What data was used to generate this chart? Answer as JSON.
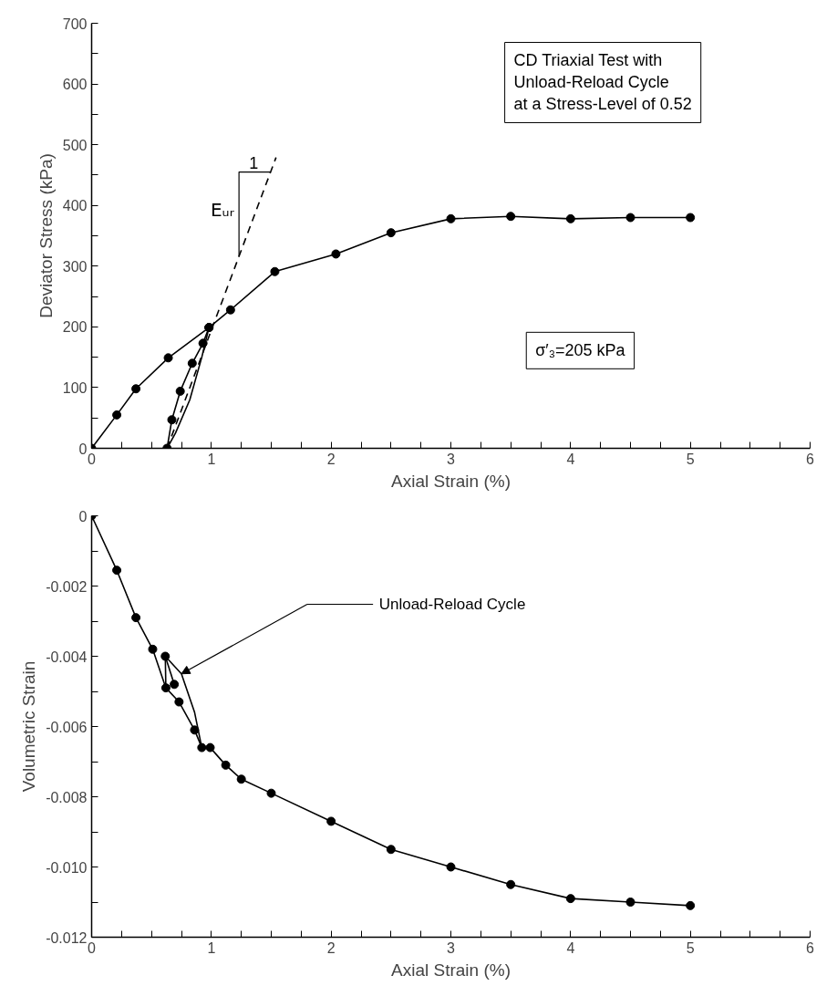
{
  "chart_data": [
    {
      "type": "line",
      "xlabel": "Axial Strain (%)",
      "ylabel": "Deviator Stress (kPa)",
      "xlim": [
        0,
        6
      ],
      "ylim": [
        0,
        700
      ],
      "xticks": [
        0,
        {
          "value": 0.25,
          "label": null
        },
        {
          "value": 0.5,
          "label": null
        },
        {
          "value": 0.75,
          "label": null
        },
        1,
        {
          "value": 1.25,
          "label": null
        },
        {
          "value": 1.5,
          "label": null
        },
        {
          "value": 1.75,
          "label": null
        },
        2,
        {
          "value": 2.25,
          "label": null
        },
        {
          "value": 2.5,
          "label": null
        },
        {
          "value": 2.75,
          "label": null
        },
        3,
        {
          "value": 3.25,
          "label": null
        },
        {
          "value": 3.5,
          "label": null
        },
        {
          "value": 3.75,
          "label": null
        },
        4,
        {
          "value": 4.25,
          "label": null
        },
        {
          "value": 4.5,
          "label": null
        },
        {
          "value": 4.75,
          "label": null
        },
        5,
        {
          "value": 5.25,
          "label": null
        },
        {
          "value": 5.5,
          "label": null
        },
        {
          "value": 5.75,
          "label": null
        },
        6
      ],
      "yticks": [
        0,
        {
          "value": 50,
          "label": null
        },
        100,
        {
          "value": 150,
          "label": null
        },
        200,
        {
          "value": 250,
          "label": null
        },
        300,
        {
          "value": 350,
          "label": null
        },
        400,
        {
          "value": 450,
          "label": null
        },
        500,
        {
          "value": 550,
          "label": null
        },
        600,
        {
          "value": 650,
          "label": null
        },
        700
      ],
      "grid": false,
      "series": [
        {
          "color": "#000000",
          "marker": "circle",
          "line_style": "solid",
          "x": [
            0,
            0.21,
            0.37,
            0.64,
            0.98,
            1.16,
            1.53,
            2.04,
            2.5,
            3.0,
            3.5,
            4.0,
            4.5,
            5.0
          ],
          "values": [
            0,
            55,
            98,
            149,
            199,
            228,
            291,
            320,
            355,
            378,
            382,
            378,
            380,
            380
          ]
        },
        {
          "color": "#000000",
          "marker": "none",
          "line_style": "solid",
          "x": [
            0.98,
            0.92,
            0.82,
            0.7,
            0.63
          ],
          "values": [
            199,
            150,
            80,
            25,
            0
          ]
        },
        {
          "color": "#000000",
          "marker": "circle",
          "line_style": "solid",
          "x": [
            0.63,
            0.67,
            0.74,
            0.84,
            0.93,
            0.98
          ],
          "values": [
            0,
            47,
            94,
            140,
            173,
            199
          ]
        },
        {
          "color": "#000000",
          "marker": "none",
          "line_style": "dashed",
          "x": [
            0.63,
            1.54
          ],
          "values": [
            0,
            479
          ]
        }
      ],
      "annotations": [
        "CD Triaxial Test with\nUnload-Reload Cycle\nat a Stress-Level of 0.52",
        {
          "text": "1",
          "x": 1.49,
          "y": 453
        },
        "Eᵤᵣ",
        "σ′₃=205 kPa"
      ]
    },
    {
      "type": "line",
      "xlabel": "Axial Strain (%)",
      "ylabel": "Volumetric Strain",
      "xlim": [
        0,
        6
      ],
      "ylim": [
        -0.012,
        0
      ],
      "xticks": [
        0,
        {
          "value": 0.25,
          "label": null
        },
        {
          "value": 0.5,
          "label": null
        },
        {
          "value": 0.75,
          "label": null
        },
        1,
        {
          "value": 1.25,
          "label": null
        },
        {
          "value": 1.5,
          "label": null
        },
        {
          "value": 1.75,
          "label": null
        },
        2,
        {
          "value": 2.25,
          "label": null
        },
        {
          "value": 2.5,
          "label": null
        },
        {
          "value": 2.75,
          "label": null
        },
        3,
        {
          "value": 3.25,
          "label": null
        },
        {
          "value": 3.5,
          "label": null
        },
        {
          "value": 3.75,
          "label": null
        },
        4,
        {
          "value": 4.25,
          "label": null
        },
        {
          "value": 4.5,
          "label": null
        },
        {
          "value": 4.75,
          "label": null
        },
        5,
        {
          "value": 5.25,
          "label": null
        },
        {
          "value": 5.5,
          "label": null
        },
        {
          "value": 5.75,
          "label": null
        },
        6
      ],
      "yticks": [
        0,
        {
          "value": -0.001,
          "label": null
        },
        -0.002,
        {
          "value": -0.003,
          "label": null
        },
        -0.004,
        {
          "value": -0.005,
          "label": null
        },
        -0.006,
        {
          "value": -0.007,
          "label": null
        },
        -0.008,
        {
          "value": -0.009,
          "label": null
        },
        {
          "value": -0.01,
          "label": "-0.010"
        },
        {
          "value": -0.011,
          "label": null
        },
        -0.012
      ],
      "grid": false,
      "series": [
        {
          "color": "#000000",
          "marker": "circle",
          "line_style": "solid",
          "x": [
            0,
            0.21,
            0.37,
            0.51,
            0.62,
            0.73,
            0.86,
            0.92,
            0.99,
            1.12,
            1.25,
            1.5,
            2.0,
            2.5,
            3.0,
            3.5,
            4.0,
            4.5,
            5.0
          ],
          "values": [
            0,
            -0.00155,
            -0.0029,
            -0.0038,
            -0.0049,
            -0.0053,
            -0.0061,
            -0.0066,
            -0.0066,
            -0.0071,
            -0.0075,
            -0.0079,
            -0.0087,
            -0.0095,
            -0.01,
            -0.0105,
            -0.0109,
            -0.011,
            -0.0111
          ]
        },
        {
          "color": "#000000",
          "marker": "circle",
          "line_style": "solid",
          "x": [
            0.615,
            0.69
          ],
          "values": [
            -0.004,
            -0.0048
          ]
        },
        {
          "color": "#000000",
          "marker": "none",
          "line_style": "solid",
          "x": [
            0.62,
            0.615,
            0.75,
            0.86,
            0.92
          ],
          "values": [
            -0.0049,
            -0.004,
            -0.0045,
            -0.0056,
            -0.0066
          ]
        }
      ],
      "annotations": [
        "Unload-Reload Cycle"
      ]
    }
  ]
}
